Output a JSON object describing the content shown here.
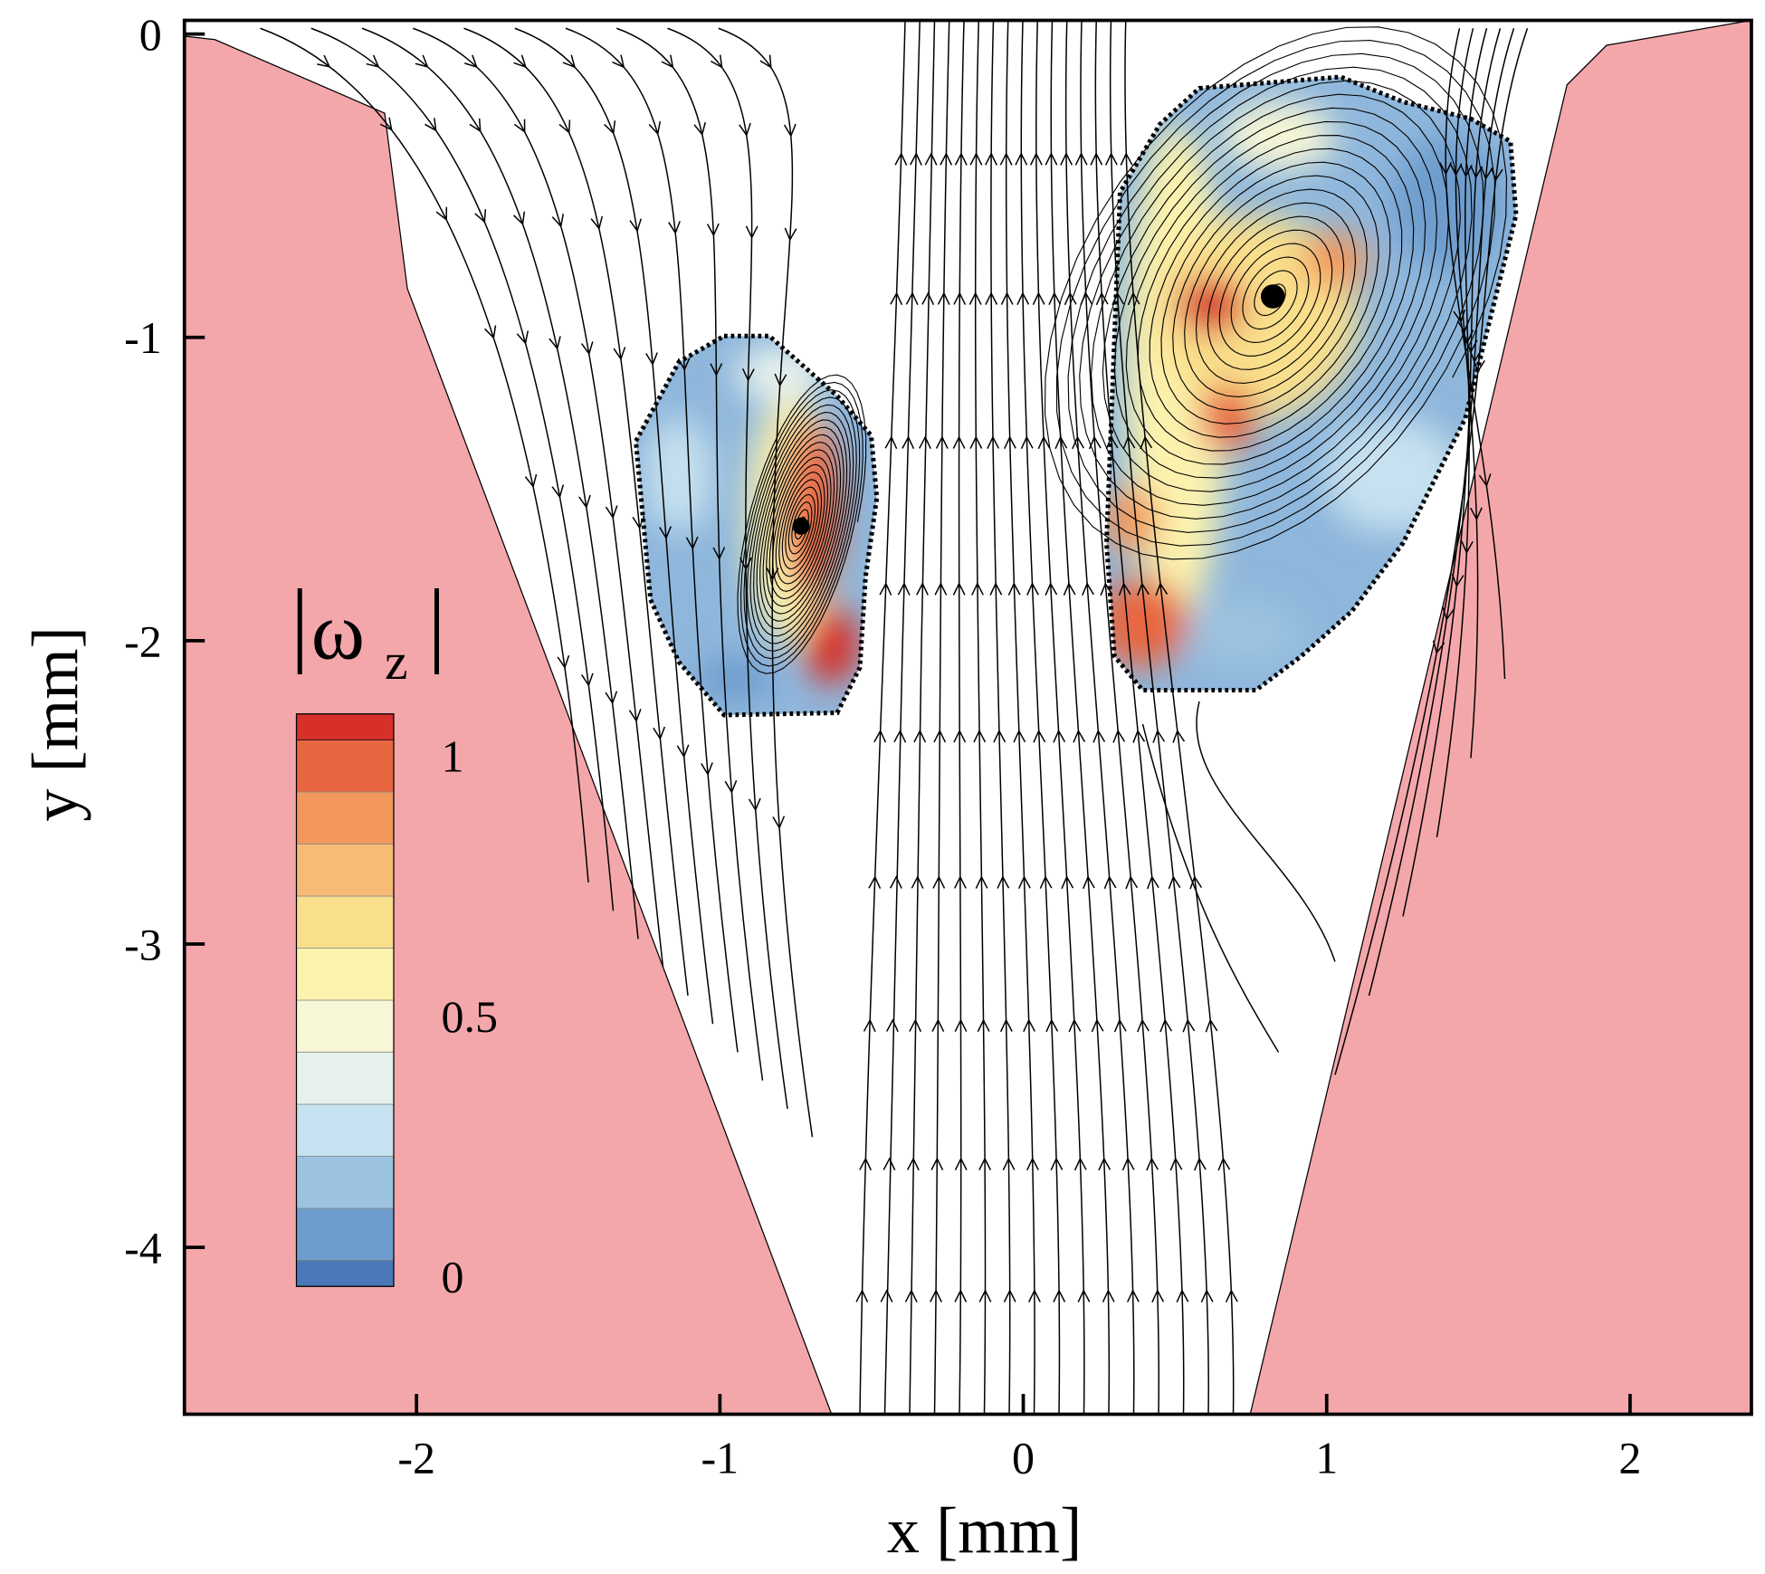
{
  "chart_data": {
    "type": "streamline",
    "xlabel": "x [mm]",
    "ylabel": "y [mm]",
    "xlim": [
      -2.765,
      2.4
    ],
    "ylim": [
      -4.55,
      0.045
    ],
    "xticks": [
      -2,
      -1,
      0,
      1,
      2
    ],
    "yticks": [
      -4,
      -3,
      -2,
      -1,
      0
    ],
    "colorbar": {
      "label": "ω",
      "subscript": "z",
      "lim": [
        -0.05,
        1.05
      ],
      "levels": [
        0,
        0.1,
        0.2,
        0.3,
        0.4,
        0.5,
        0.6,
        0.7,
        0.8,
        0.9,
        1
      ],
      "colors": [
        "#4a78b8",
        "#6e9dcd",
        "#9bc3df",
        "#c6e1ef",
        "#e6f1ee",
        "#f7f6d6",
        "#fcf3ae",
        "#f9df8c",
        "#f7bb76",
        "#f2985c",
        "#e8663f",
        "#d7302a"
      ],
      "ticks": [
        0,
        0.5,
        1
      ]
    }
  }
}
